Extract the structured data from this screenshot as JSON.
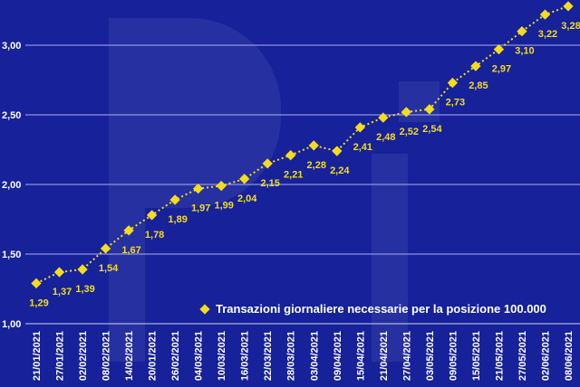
{
  "chart_data": {
    "type": "line",
    "title": "",
    "xlabel": "",
    "ylabel": "",
    "ylim": [
      1.0,
      3.0
    ],
    "yticks": [
      "1,00",
      "1,50",
      "2,00",
      "2,50",
      "3,00"
    ],
    "ytick_values": [
      1.0,
      1.5,
      2.0,
      2.5,
      3.0
    ],
    "grid": true,
    "legend_position": "bottom-right",
    "categories": [
      "21/01/2021",
      "27/01/2021",
      "02/02/2021",
      "08/02/2021",
      "14/02/2021",
      "20/01/2021",
      "26/02/2021",
      "04/03/2021",
      "10/03/2021",
      "16/03/2021",
      "22/03/2021",
      "28/03/2021",
      "03/04/2021",
      "09/04/2021",
      "15/04/2021",
      "21/04/2021",
      "27/04/2021",
      "03/05/2021",
      "09/05/2021",
      "15/05/2021",
      "21/05/2021",
      "27/05/2021",
      "02/06/2021",
      "08/06/2021"
    ],
    "series": [
      {
        "name": "Transazioni giornaliere necessarie per la posizione 100.000",
        "color": "#f5dc1e",
        "values": [
          1.29,
          1.37,
          1.39,
          1.54,
          1.67,
          1.78,
          1.89,
          1.97,
          1.99,
          2.04,
          2.15,
          2.21,
          2.28,
          2.24,
          2.41,
          2.48,
          2.52,
          2.54,
          2.73,
          2.85,
          2.97,
          3.1,
          3.22,
          3.28
        ],
        "labels": [
          "1,29",
          "1,37",
          "1,39",
          "1,54",
          "1,67",
          "1,78",
          "1,89",
          "1,97",
          "1,99",
          "2,04",
          "2,15",
          "2,21",
          "2,28",
          "2,24",
          "2,41",
          "2,48",
          "2,52",
          "2,54",
          "2,73",
          "2,85",
          "2,97",
          "3,10",
          "3,22",
          "3,28"
        ]
      }
    ]
  },
  "colors": {
    "background": "#16219a",
    "grid": "#aab0e8",
    "marker": "#f5dc1e"
  }
}
